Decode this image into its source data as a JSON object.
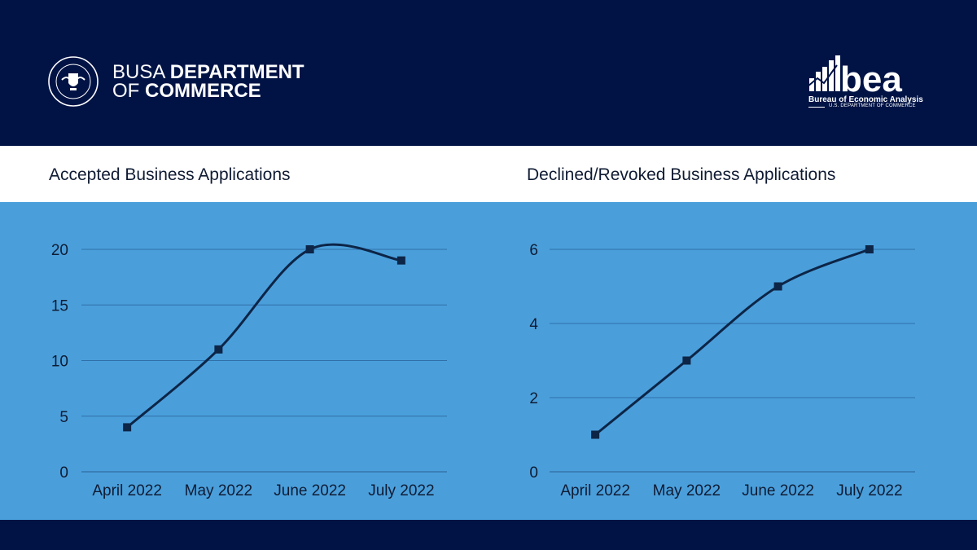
{
  "header": {
    "department_line1_light": "BUSA ",
    "department_line1_bold": "DEPARTMENT",
    "department_line2_light": "OF ",
    "department_line2_bold": "COMMERCE",
    "bea_wordmark": "bea",
    "bea_name": "Bureau of Economic Analysis",
    "bea_subtitle": "U.S. DEPARTMENT OF COMMERCE",
    "seal_text": "DEPARTMENT OF COMMERCE · UNITED STATES OF AMERICA"
  },
  "colors": {
    "navy": "#011345",
    "chart_bg": "#4a9fdb",
    "line": "#0d2547",
    "grid": "#2f6fa8"
  },
  "chart_data": [
    {
      "type": "line",
      "title": "Accepted Business Applications",
      "categories": [
        "April 2022",
        "May 2022",
        "June 2022",
        "July 2022"
      ],
      "series": [
        {
          "values": [
            4,
            11,
            20,
            19
          ]
        }
      ],
      "ylim": [
        0,
        20
      ],
      "yticks": [
        0,
        5,
        10,
        15,
        20
      ],
      "grid": true,
      "smooth": true,
      "marker": "square"
    },
    {
      "type": "line",
      "title": "Declined/Revoked Business Applications",
      "categories": [
        "April 2022",
        "May 2022",
        "June 2022",
        "July 2022"
      ],
      "series": [
        {
          "values": [
            1,
            3,
            5,
            6
          ]
        }
      ],
      "ylim": [
        0,
        6
      ],
      "yticks": [
        0,
        2,
        4,
        6
      ],
      "grid": true,
      "smooth": true,
      "marker": "square"
    }
  ]
}
